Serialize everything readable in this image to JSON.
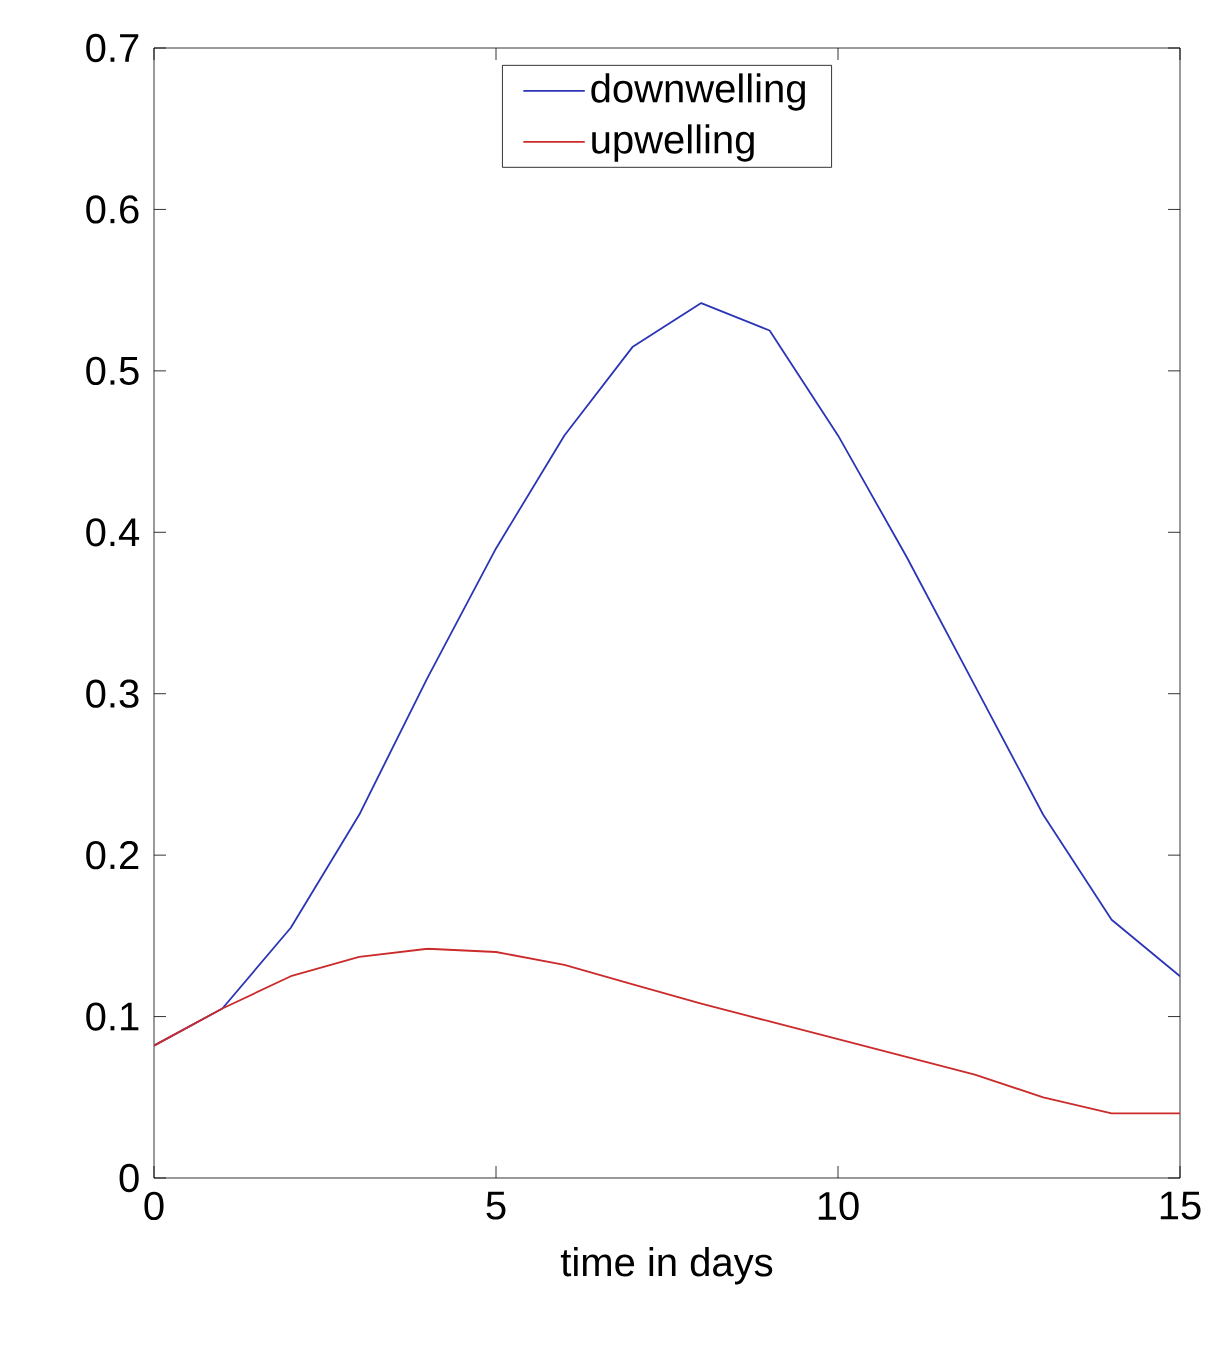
{
  "chart_data": {
    "type": "line",
    "xlabel": "time in days",
    "x": [
      0,
      1,
      2,
      3,
      4,
      5,
      6,
      7,
      8,
      9,
      10,
      11,
      12,
      13,
      14,
      15
    ],
    "series": [
      {
        "name": "downwelling",
        "color": "#2b35b5",
        "values": [
          0.082,
          0.105,
          0.155,
          0.225,
          0.31,
          0.39,
          0.46,
          0.515,
          0.542,
          0.525,
          0.46,
          0.385,
          0.305,
          0.225,
          0.16,
          0.125
        ]
      },
      {
        "name": "upwelling",
        "color": "#cc2b2b",
        "values": [
          0.082,
          0.105,
          0.125,
          0.137,
          0.142,
          0.14,
          0.132,
          0.12,
          0.108,
          0.097,
          0.086,
          0.075,
          0.064,
          0.05,
          0.04,
          0.04
        ]
      }
    ],
    "xlim": [
      0,
      15
    ],
    "xticks": [
      0,
      5,
      10,
      15
    ],
    "ylim": [
      0,
      0.7
    ],
    "yticks": [
      0,
      0.1,
      0.2,
      0.3,
      0.4,
      0.5,
      0.6,
      0.7
    ],
    "legend": "top",
    "grid": false,
    "marker": "none",
    "line_style": "solid"
  }
}
